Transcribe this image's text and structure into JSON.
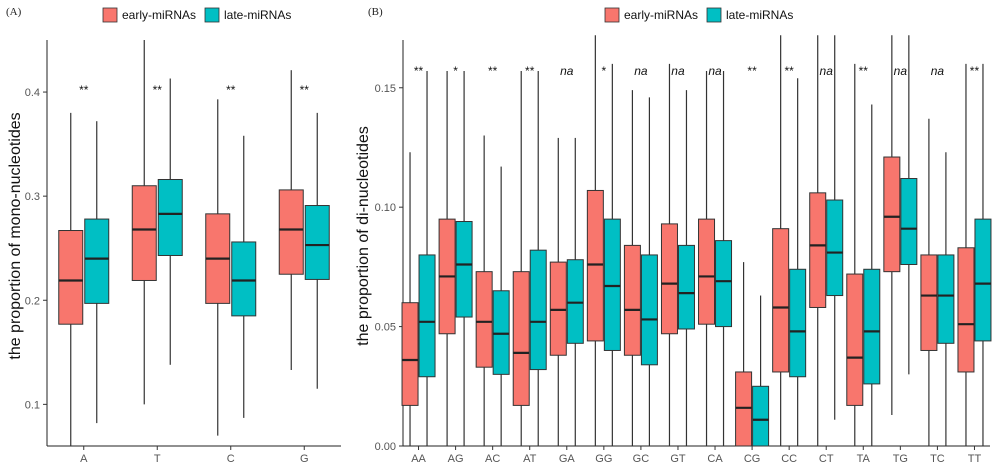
{
  "chart_data": [
    {
      "type": "boxplot",
      "panel_label": "(A)",
      "ylabel": "the proportion of mono-nucleotides",
      "xlabel": "",
      "ylim": [
        0.06,
        0.45
      ],
      "yticks": [
        0.1,
        0.2,
        0.3,
        0.4
      ],
      "ytick_labels": [
        "0.1",
        "0.2",
        "0.3",
        "0.4"
      ],
      "categories": [
        "A",
        "T",
        "C",
        "G"
      ],
      "significance": [
        "**",
        "**",
        "**",
        "**"
      ],
      "legend": [
        "early-miRNAs",
        "late-miRNAs"
      ],
      "colors": {
        "early": "#F8766D",
        "late": "#00BFC4"
      },
      "series": [
        {
          "name": "early-miRNAs",
          "boxes": [
            {
              "min": 0.06,
              "q1": 0.177,
              "median": 0.219,
              "q3": 0.267,
              "max": 0.38
            },
            {
              "min": 0.1,
              "q1": 0.219,
              "median": 0.268,
              "q3": 0.31,
              "max": 0.45
            },
            {
              "min": 0.07,
              "q1": 0.197,
              "median": 0.24,
              "q3": 0.283,
              "max": 0.393
            },
            {
              "min": 0.133,
              "q1": 0.225,
              "median": 0.268,
              "q3": 0.306,
              "max": 0.421
            }
          ]
        },
        {
          "name": "late-miRNAs",
          "boxes": [
            {
              "min": 0.082,
              "q1": 0.197,
              "median": 0.24,
              "q3": 0.278,
              "max": 0.372
            },
            {
              "min": 0.138,
              "q1": 0.243,
              "median": 0.283,
              "q3": 0.316,
              "max": 0.413
            },
            {
              "min": 0.087,
              "q1": 0.185,
              "median": 0.219,
              "q3": 0.256,
              "max": 0.358
            },
            {
              "min": 0.115,
              "q1": 0.22,
              "median": 0.253,
              "q3": 0.291,
              "max": 0.38
            }
          ]
        }
      ]
    },
    {
      "type": "boxplot",
      "panel_label": "(B)",
      "ylabel": "the proportion of di-nucleotides",
      "xlabel": "",
      "ylim": [
        0.0,
        0.17
      ],
      "yticks": [
        0.0,
        0.05,
        0.1,
        0.15
      ],
      "ytick_labels": [
        "0.00",
        "0.05",
        "0.10",
        "0.15"
      ],
      "categories": [
        "AA",
        "AG",
        "AC",
        "AT",
        "GA",
        "GG",
        "GC",
        "GT",
        "CA",
        "CG",
        "CC",
        "CT",
        "TA",
        "TG",
        "TC",
        "TT"
      ],
      "significance": [
        "**",
        "*",
        "**",
        "**",
        "na",
        "*",
        "na",
        "na",
        "na",
        "**",
        "**",
        "na",
        "**",
        "na",
        "na",
        "**"
      ],
      "legend": [
        "early-miRNAs",
        "late-miRNAs"
      ],
      "colors": {
        "early": "#F8766D",
        "late": "#00BFC4"
      },
      "series": [
        {
          "name": "early-miRNAs",
          "boxes": [
            {
              "min": 0.0,
              "q1": 0.017,
              "median": 0.036,
              "q3": 0.06,
              "max": 0.123
            },
            {
              "min": 0.0,
              "q1": 0.047,
              "median": 0.071,
              "q3": 0.095,
              "max": 0.157
            },
            {
              "min": 0.0,
              "q1": 0.033,
              "median": 0.052,
              "q3": 0.073,
              "max": 0.13
            },
            {
              "min": 0.0,
              "q1": 0.017,
              "median": 0.039,
              "q3": 0.073,
              "max": 0.157
            },
            {
              "min": 0.0,
              "q1": 0.038,
              "median": 0.057,
              "q3": 0.077,
              "max": 0.129
            },
            {
              "min": 0.0,
              "q1": 0.044,
              "median": 0.076,
              "q3": 0.107,
              "max": 0.172
            },
            {
              "min": 0.0,
              "q1": 0.038,
              "median": 0.057,
              "q3": 0.084,
              "max": 0.149
            },
            {
              "min": 0.0,
              "q1": 0.047,
              "median": 0.068,
              "q3": 0.093,
              "max": 0.16
            },
            {
              "min": 0.0,
              "q1": 0.051,
              "median": 0.071,
              "q3": 0.095,
              "max": 0.157
            },
            {
              "min": 0.0,
              "q1": 0.0,
              "median": 0.016,
              "q3": 0.031,
              "max": 0.077
            },
            {
              "min": 0.0,
              "q1": 0.031,
              "median": 0.058,
              "q3": 0.091,
              "max": 0.172
            },
            {
              "min": 0.0,
              "q1": 0.058,
              "median": 0.084,
              "q3": 0.106,
              "max": 0.172
            },
            {
              "min": 0.0,
              "q1": 0.017,
              "median": 0.037,
              "q3": 0.072,
              "max": 0.16
            },
            {
              "min": 0.013,
              "q1": 0.073,
              "median": 0.096,
              "q3": 0.121,
              "max": 0.172
            },
            {
              "min": 0.0,
              "q1": 0.04,
              "median": 0.063,
              "q3": 0.08,
              "max": 0.137
            },
            {
              "min": 0.0,
              "q1": 0.031,
              "median": 0.051,
              "q3": 0.083,
              "max": 0.16
            }
          ]
        },
        {
          "name": "late-miRNAs",
          "boxes": [
            {
              "min": 0.0,
              "q1": 0.029,
              "median": 0.052,
              "q3": 0.08,
              "max": 0.157
            },
            {
              "min": 0.0,
              "q1": 0.054,
              "median": 0.076,
              "q3": 0.094,
              "max": 0.157
            },
            {
              "min": 0.0,
              "q1": 0.03,
              "median": 0.047,
              "q3": 0.065,
              "max": 0.117
            },
            {
              "min": 0.0,
              "q1": 0.032,
              "median": 0.052,
              "q3": 0.082,
              "max": 0.157
            },
            {
              "min": 0.0,
              "q1": 0.043,
              "median": 0.06,
              "q3": 0.078,
              "max": 0.129
            },
            {
              "min": 0.0,
              "q1": 0.04,
              "median": 0.067,
              "q3": 0.095,
              "max": 0.16
            },
            {
              "min": 0.0,
              "q1": 0.034,
              "median": 0.053,
              "q3": 0.08,
              "max": 0.146
            },
            {
              "min": 0.0,
              "q1": 0.049,
              "median": 0.064,
              "q3": 0.084,
              "max": 0.149
            },
            {
              "min": 0.0,
              "q1": 0.05,
              "median": 0.069,
              "q3": 0.086,
              "max": 0.157
            },
            {
              "min": 0.0,
              "q1": 0.0,
              "median": 0.011,
              "q3": 0.025,
              "max": 0.063
            },
            {
              "min": 0.0,
              "q1": 0.029,
              "median": 0.048,
              "q3": 0.074,
              "max": 0.154
            },
            {
              "min": 0.011,
              "q1": 0.063,
              "median": 0.081,
              "q3": 0.103,
              "max": 0.172
            },
            {
              "min": 0.0,
              "q1": 0.026,
              "median": 0.048,
              "q3": 0.074,
              "max": 0.143
            },
            {
              "min": 0.03,
              "q1": 0.076,
              "median": 0.091,
              "q3": 0.112,
              "max": 0.172
            },
            {
              "min": 0.0,
              "q1": 0.043,
              "median": 0.063,
              "q3": 0.08,
              "max": 0.123
            },
            {
              "min": 0.0,
              "q1": 0.044,
              "median": 0.068,
              "q3": 0.095,
              "max": 0.16
            }
          ]
        }
      ]
    }
  ]
}
